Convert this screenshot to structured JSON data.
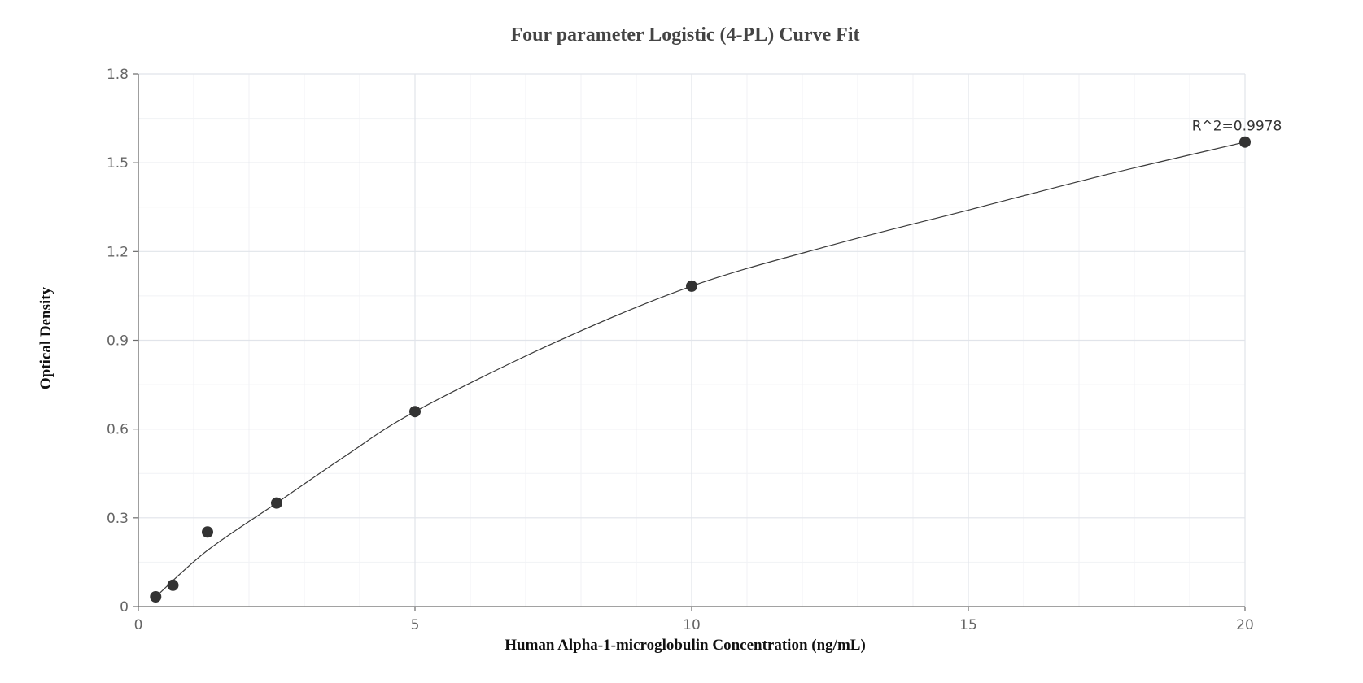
{
  "chart_data": {
    "type": "scatter",
    "title": "Four parameter Logistic (4-PL) Curve Fit",
    "xlabel": "Human Alpha-1-microglobulin Concentration (ng/mL)",
    "ylabel": "Optical Density",
    "xlim": [
      0,
      20
    ],
    "ylim": [
      0,
      1.8
    ],
    "xticks": [
      0,
      5,
      10,
      15,
      20
    ],
    "yticks": [
      0,
      0.3,
      0.6,
      0.9,
      1.2,
      1.5,
      1.8
    ],
    "xtick_labels": [
      "0",
      "5",
      "10",
      "15",
      "20"
    ],
    "ytick_labels": [
      "0",
      "0.3",
      "0.6",
      "0.9",
      "1.2",
      "1.5",
      "1.8"
    ],
    "grid": true,
    "series": [
      {
        "x": [
          0.313,
          0.625,
          1.25,
          2.5,
          5,
          10,
          20
        ],
        "y": [
          0.033,
          0.072,
          0.252,
          0.35,
          0.659,
          1.083,
          1.57
        ]
      }
    ],
    "fit_curve": {
      "model": "4-PL",
      "x": [
        0.313,
        1.25,
        2.5,
        3.75,
        5,
        7.5,
        10,
        12.5,
        15,
        17.5,
        20
      ],
      "y": [
        0.033,
        0.19,
        0.35,
        0.51,
        0.659,
        0.89,
        1.083,
        1.22,
        1.34,
        1.46,
        1.57
      ]
    },
    "annotations": [
      {
        "text": "R^2=0.9978",
        "x": 20,
        "y": 1.57
      }
    ],
    "colors": {
      "points": "#333333",
      "curve": "#3a3a3a",
      "grid": "#e1e4ea"
    }
  }
}
